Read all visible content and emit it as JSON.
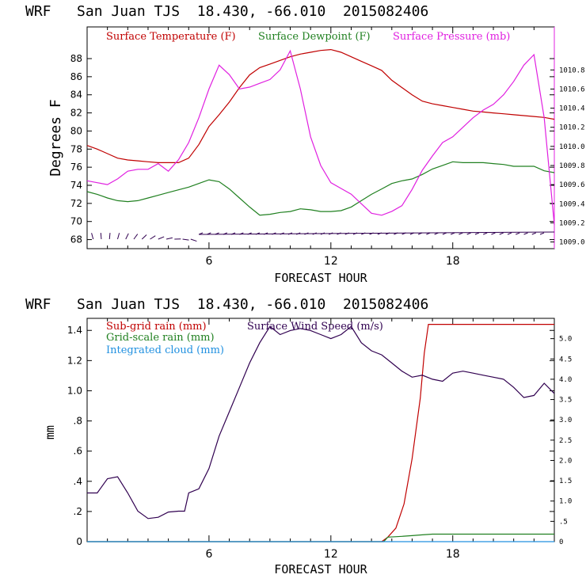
{
  "chart_data": [
    {
      "type": "line",
      "title": "WRF   San Juan TJS  18.430, -66.010  2015082406",
      "xlabel": "FORECAST HOUR",
      "ylabel": "Degrees F",
      "xlim": [
        0,
        23
      ],
      "xticks": [
        6,
        12,
        18
      ],
      "ylim": [
        67,
        91.5
      ],
      "yticks": [
        68,
        70,
        72,
        74,
        76,
        78,
        80,
        82,
        84,
        86,
        88
      ],
      "y2lim": [
        1008.93,
        1011.25
      ],
      "y2ticks": [
        1009.0,
        1009.2,
        1009.4,
        1009.6,
        1009.8,
        1010.0,
        1010.2,
        1010.4,
        1010.6,
        1010.8
      ],
      "legend": [
        "Surface Temperature (F)",
        "Surface Dewpoint (F)",
        "Surface Pressure (mb)"
      ],
      "colors": {
        "temperature": "#c00000",
        "dewpoint": "#208020",
        "pressure": "#e020e0",
        "barbs": "#300050"
      },
      "legend_placement": "top",
      "series": [
        {
          "name": "Surface Temperature (F)",
          "axis": "left",
          "x": [
            0,
            0.5,
            1,
            1.5,
            2,
            2.5,
            3,
            3.5,
            4,
            4.5,
            5,
            5.5,
            6,
            6.5,
            7,
            7.5,
            8,
            8.5,
            9,
            9.5,
            10,
            10.5,
            11,
            11.5,
            12,
            12.5,
            13,
            13.5,
            14,
            14.5,
            15,
            15.5,
            16,
            16.5,
            17,
            17.5,
            18,
            18.5,
            19,
            19.5,
            20,
            20.5,
            21,
            21.5,
            22,
            22.5,
            23
          ],
          "y": [
            78.4,
            78,
            77.5,
            77,
            76.8,
            76.7,
            76.6,
            76.5,
            76.5,
            76.5,
            77,
            78.5,
            80.5,
            81.8,
            83.2,
            84.8,
            86.2,
            87,
            87.4,
            87.8,
            88.2,
            88.5,
            88.7,
            88.9,
            89,
            88.7,
            88.2,
            87.7,
            87.2,
            86.7,
            85.6,
            84.8,
            84,
            83.3,
            83,
            82.8,
            82.6,
            82.4,
            82.2,
            82.1,
            82,
            81.9,
            81.8,
            81.7,
            81.6,
            81.5,
            81.3
          ]
        },
        {
          "name": "Surface Dewpoint (F)",
          "axis": "left",
          "x": [
            0,
            0.5,
            1,
            1.5,
            2,
            2.5,
            3,
            3.5,
            4,
            4.5,
            5,
            5.5,
            6,
            6.5,
            7,
            7.5,
            8,
            8.5,
            9,
            9.5,
            10,
            10.5,
            11,
            11.5,
            12,
            12.5,
            13,
            13.5,
            14,
            14.5,
            15,
            15.5,
            16,
            16.5,
            17,
            17.5,
            18,
            18.5,
            19,
            19.5,
            20,
            20.5,
            21,
            21.5,
            22,
            22.5,
            23
          ],
          "y": [
            73.3,
            73,
            72.6,
            72.3,
            72.2,
            72.3,
            72.6,
            72.9,
            73.2,
            73.5,
            73.8,
            74.2,
            74.6,
            74.4,
            73.6,
            72.6,
            71.6,
            70.7,
            70.8,
            71,
            71.1,
            71.4,
            71.3,
            71.1,
            71.1,
            71.2,
            71.6,
            72.3,
            73,
            73.6,
            74.2,
            74.5,
            74.7,
            75.2,
            75.8,
            76.2,
            76.6,
            76.5,
            76.5,
            76.5,
            76.4,
            76.3,
            76.1,
            76.1,
            76.1,
            75.6,
            75.4
          ]
        },
        {
          "name": "Surface Pressure (mb)",
          "axis": "right",
          "x": [
            0,
            0.5,
            1,
            1.5,
            2,
            2.5,
            3,
            3.5,
            4,
            4.5,
            5,
            5.5,
            6,
            6.5,
            7,
            7.5,
            8,
            8.5,
            9,
            9.5,
            10,
            10.5,
            11,
            11.5,
            12,
            12.5,
            13,
            13.5,
            14,
            14.5,
            15,
            15.5,
            16,
            16.5,
            17,
            17.5,
            18,
            18.5,
            19,
            19.5,
            20,
            20.5,
            21,
            21.5,
            22,
            22.5,
            23
          ],
          "y": [
            1009.64,
            1009.62,
            1009.6,
            1009.66,
            1009.74,
            1009.76,
            1009.76,
            1009.82,
            1009.74,
            1009.86,
            1010.04,
            1010.3,
            1010.6,
            1010.85,
            1010.75,
            1010.6,
            1010.62,
            1010.66,
            1010.7,
            1010.8,
            1011.0,
            1010.6,
            1010.1,
            1009.8,
            1009.62,
            1009.56,
            1009.5,
            1009.4,
            1009.3,
            1009.28,
            1009.32,
            1009.38,
            1009.55,
            1009.75,
            1009.9,
            1010.04,
            1010.1,
            1010.2,
            1010.3,
            1010.38,
            1010.44,
            1010.54,
            1010.68,
            1010.85,
            1010.96,
            1010.3,
            1009.18
          ]
        }
      ],
      "wind_barbs": "Surface wind barbs along bottom axis"
    },
    {
      "type": "line",
      "title": "WRF   San Juan TJS  18.430, -66.010  2015082406",
      "xlabel": "FORECAST HOUR",
      "ylabel": "mm",
      "xlim": [
        0,
        23
      ],
      "xticks": [
        6,
        12,
        18
      ],
      "ylim": [
        0,
        1.48
      ],
      "yticks": [
        0,
        0.2,
        0.4,
        0.6,
        0.8,
        1.0,
        1.2,
        1.4
      ],
      "ytick_labels": [
        "0",
        ".2",
        ".4",
        ".6",
        ".8",
        "1.0",
        "1.2",
        "1.4"
      ],
      "y2lim": [
        0,
        5.5
      ],
      "y2ticks": [
        0,
        0.5,
        1.0,
        1.5,
        2.0,
        2.5,
        3.0,
        3.5,
        4.0,
        4.5,
        5.0
      ],
      "y2tick_labels": [
        "0",
        ".5",
        "1.0",
        "1.5",
        "2.0",
        "2.5",
        "3.0",
        "3.5",
        "4.0",
        "4.5",
        "5.0"
      ],
      "legend": [
        "Sub-grid rain (mm)",
        "Grid-scale rain (mm)",
        "Integrated cloud (mm)",
        "Surface Wind Speed (m/s)"
      ],
      "colors": {
        "subgrid": "#c00000",
        "gridscale": "#208020",
        "cloud": "#2090e0",
        "wind": "#300050"
      },
      "legend_placement": "top-left",
      "series": [
        {
          "name": "Sub-grid rain (mm)",
          "axis": "left",
          "x": [
            0,
            14.5,
            14.8,
            15.2,
            15.6,
            16,
            16.4,
            16.6,
            16.8,
            23
          ],
          "y": [
            0,
            0,
            0.03,
            0.09,
            0.25,
            0.55,
            0.95,
            1.25,
            1.44,
            1.44
          ]
        },
        {
          "name": "Grid-scale rain (mm)",
          "axis": "left",
          "x": [
            0,
            14.6,
            14.8,
            15.5,
            16,
            16.5,
            17,
            23
          ],
          "y": [
            0,
            0,
            0.03,
            0.035,
            0.04,
            0.045,
            0.05,
            0.05
          ]
        },
        {
          "name": "Integrated cloud (mm)",
          "axis": "left",
          "x": [
            0,
            23
          ],
          "y": [
            0,
            0
          ]
        },
        {
          "name": "Surface Wind Speed (m/s)",
          "axis": "right",
          "x": [
            0,
            0.5,
            1,
            1.5,
            2,
            2.5,
            3,
            3.5,
            4,
            4.5,
            4.8,
            5,
            5.5,
            6,
            6.5,
            7,
            7.5,
            8,
            8.5,
            9,
            9.5,
            10,
            10.5,
            11,
            11.5,
            12,
            12.5,
            13,
            13.5,
            14,
            14.5,
            15,
            15.5,
            16,
            16.5,
            17,
            17.5,
            18,
            18.5,
            19,
            19.5,
            20,
            20.5,
            21,
            21.5,
            22,
            22.5,
            23
          ],
          "y": [
            1.2,
            1.2,
            1.55,
            1.6,
            1.2,
            0.75,
            0.57,
            0.6,
            0.73,
            0.75,
            0.75,
            1.2,
            1.3,
            1.8,
            2.6,
            3.2,
            3.8,
            4.4,
            4.9,
            5.3,
            5.1,
            5.2,
            5.25,
            5.2,
            5.1,
            5.0,
            5.1,
            5.3,
            4.9,
            4.7,
            4.6,
            4.4,
            4.2,
            4.05,
            4.1,
            4.0,
            3.95,
            4.15,
            4.2,
            4.15,
            4.1,
            4.05,
            4.0,
            3.8,
            3.55,
            3.6,
            3.9,
            3.65
          ]
        }
      ]
    }
  ]
}
